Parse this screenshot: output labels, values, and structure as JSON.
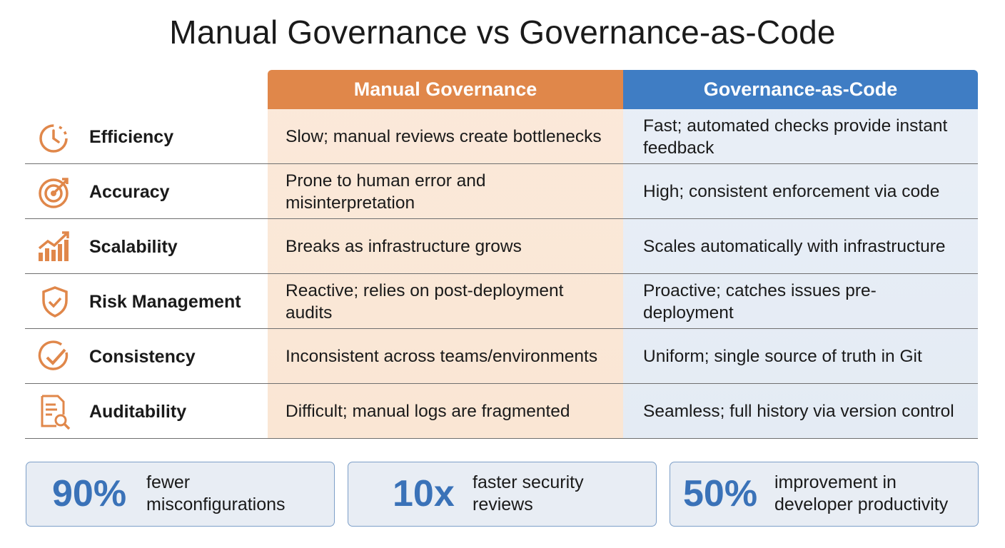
{
  "header": {
    "title": "Manual Governance vs Governance-as-Code"
  },
  "table": {
    "columns": [
      "Manual Governance",
      "Governance-as-Code"
    ],
    "rows": [
      [
        "Efficiency",
        "Slow; manual reviews create bottlenecks",
        "Fast; automated checks provide instant feedback"
      ],
      [
        "Accuracy",
        "Prone to human error and misinterpretation",
        "High; consistent enforcement via code"
      ],
      [
        "Scalability",
        "Breaks as infrastructure grows",
        "Scales automatically with infrastructure"
      ],
      [
        "Risk Management",
        "Reactive; relies on post-deployment audits",
        "Proactive; catches issues pre-deployment"
      ],
      [
        "Consistency",
        "Inconsistent across teams/environments",
        "Uniform; single source of truth in Git"
      ],
      [
        "Auditability",
        "Difficult; manual logs are fragmented",
        "Seamless; full history via version control"
      ]
    ]
  },
  "stats": [
    {
      "value": "90%",
      "text": "fewer misconfigurations"
    },
    {
      "value": "10x",
      "text": "faster security reviews"
    },
    {
      "value": "50%",
      "text": "improvement in developer productivity"
    }
  ]
}
